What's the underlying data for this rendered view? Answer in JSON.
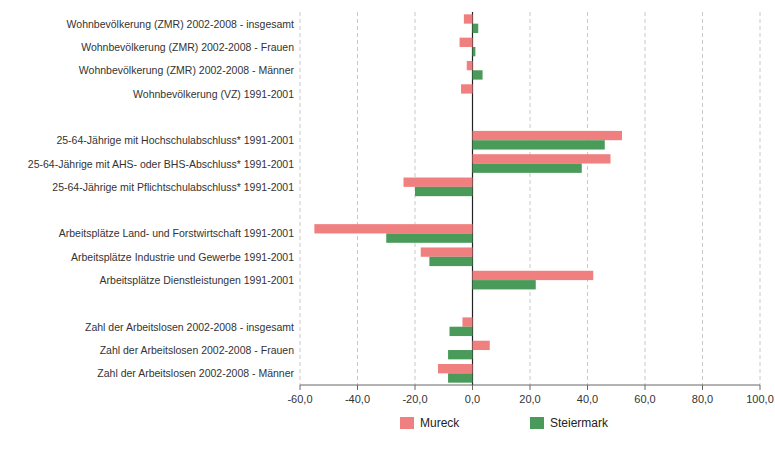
{
  "chart_data": {
    "type": "bar",
    "orientation": "horizontal",
    "categories": [
      "Wohnbevölkerung (ZMR) 2002-2008 - insgesamt",
      "Wohnbevölkerung (ZMR) 2002-2008 - Frauen",
      "Wohnbevölkerung (ZMR) 2002-2008 - Männer",
      "Wohnbevölkerung (VZ) 1991-2001",
      null,
      "25-64-Jährige mit Hochschulabschluss* 1991-2001",
      "25-64-Jährige mit AHS- oder BHS-Abschluss* 1991-2001",
      "25-64-Jährige mit Pflichtschulabschluss* 1991-2001",
      null,
      "Arbeitsplätze Land- und Forstwirtschaft 1991-2001",
      "Arbeitsplätze Industrie und Gewerbe 1991-2001",
      "Arbeitsplätze Dienstleistungen 1991-2001",
      null,
      "Zahl der Arbeitslosen 2002-2008 - insgesamt",
      "Zahl der Arbeitslosen 2002-2008 - Frauen",
      "Zahl der Arbeitslosen 2002-2008 - Männer"
    ],
    "series": [
      {
        "name": "Mureck",
        "color": "#f08080",
        "values": [
          -3.0,
          -4.5,
          -2.0,
          -4.0,
          null,
          52.0,
          48.0,
          -24.0,
          null,
          -55.0,
          -18.0,
          42.0,
          null,
          -3.5,
          6.0,
          -12.0
        ]
      },
      {
        "name": "Steiermark",
        "color": "#4a9a5a",
        "values": [
          2.0,
          1.0,
          3.5,
          0,
          null,
          46.0,
          38.0,
          -20.0,
          null,
          -30.0,
          -15.0,
          22.0,
          null,
          -8.0,
          -8.5,
          -8.5
        ]
      }
    ],
    "xlim": [
      -60,
      100
    ],
    "xticks": [
      {
        "value": -60,
        "label": "-60,0"
      },
      {
        "value": -40,
        "label": "-40,0"
      },
      {
        "value": -20,
        "label": "-20,0"
      },
      {
        "value": 0,
        "label": "0,0"
      },
      {
        "value": 20,
        "label": "20,0"
      },
      {
        "value": 40,
        "label": "40,0"
      },
      {
        "value": 60,
        "label": "60,0"
      },
      {
        "value": 80,
        "label": "80,0"
      },
      {
        "value": 100,
        "label": "100,0"
      }
    ],
    "grid": true,
    "legend": "bottom"
  }
}
